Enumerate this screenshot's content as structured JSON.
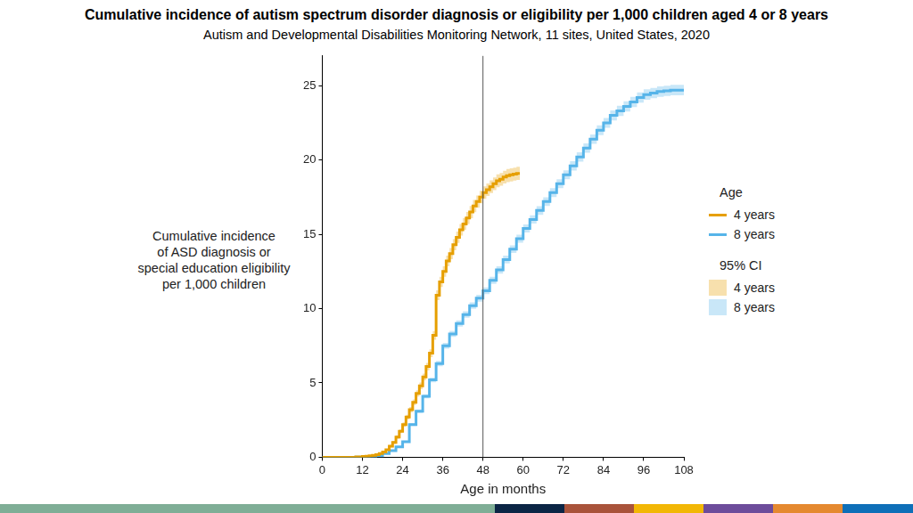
{
  "chart_data": {
    "type": "line",
    "title": "Cumulative incidence of autism spectrum disorder diagnosis or eligibility per 1,000 children aged 4 or 8 years",
    "subtitle": "Autism and Developmental Disabilities Monitoring Network, 11 sites, United States, 2020",
    "xlabel": "Age in months",
    "ylabel": "Cumulative incidence\nof ASD diagnosis or\nspecial education eligibility\nper 1,000 children",
    "xlim": [
      0,
      108
    ],
    "xticks": [
      0,
      12,
      24,
      36,
      48,
      60,
      72,
      84,
      96,
      108
    ],
    "ylim": [
      0,
      27
    ],
    "yticks": [
      0,
      5,
      10,
      15,
      20,
      25
    ],
    "grid": false,
    "legend": "right",
    "legend_title": "Age",
    "ci_legend_title": "95% CI",
    "line_style": "steps",
    "vline": 48,
    "series": [
      {
        "name": "4 years",
        "color": "#E69F00",
        "x": [
          0,
          1,
          2,
          3,
          4,
          5,
          6,
          7,
          8,
          9,
          10,
          11,
          12,
          13,
          14,
          15,
          16,
          17,
          18,
          19,
          20,
          21,
          22,
          23,
          24,
          25,
          26,
          27,
          28,
          29,
          30,
          31,
          32,
          33,
          34,
          35,
          36,
          37,
          38,
          39,
          40,
          41,
          42,
          43,
          44,
          45,
          46,
          47,
          48,
          49,
          50,
          51,
          52,
          53,
          54,
          55,
          56,
          57,
          58,
          59
        ],
        "values": [
          0,
          0,
          0,
          0,
          0,
          0,
          0,
          0,
          0,
          0,
          0.02,
          0.03,
          0.05,
          0.07,
          0.1,
          0.13,
          0.18,
          0.25,
          0.35,
          0.5,
          0.75,
          1.0,
          1.35,
          1.75,
          2.2,
          2.7,
          3.2,
          3.7,
          4.3,
          4.8,
          5.4,
          6.1,
          7.0,
          8.2,
          10.9,
          11.8,
          12.5,
          13.2,
          13.7,
          14.3,
          14.8,
          15.3,
          15.7,
          16.1,
          16.5,
          16.9,
          17.2,
          17.5,
          17.8,
          18.0,
          18.2,
          18.4,
          18.6,
          18.7,
          18.85,
          18.95,
          19.0,
          19.05,
          19.1,
          19.1
        ],
        "ci_lower": [
          0,
          0,
          0,
          0,
          0,
          0,
          0,
          0,
          0,
          0,
          0.01,
          0.01,
          0.03,
          0.04,
          0.07,
          0.09,
          0.14,
          0.2,
          0.29,
          0.43,
          0.66,
          0.9,
          1.23,
          1.62,
          2.05,
          2.54,
          3.02,
          3.51,
          4.09,
          4.58,
          5.17,
          5.85,
          6.74,
          7.91,
          10.57,
          11.46,
          12.15,
          12.84,
          13.33,
          13.92,
          14.42,
          14.91,
          15.3,
          15.7,
          16.09,
          16.49,
          16.79,
          17.08,
          17.38,
          17.58,
          17.77,
          17.97,
          18.17,
          18.27,
          18.42,
          18.51,
          18.56,
          18.61,
          18.66,
          18.66
        ],
        "ci_upper": [
          0,
          0,
          0,
          0,
          0,
          0,
          0,
          0,
          0,
          0,
          0.03,
          0.05,
          0.07,
          0.1,
          0.13,
          0.17,
          0.22,
          0.3,
          0.41,
          0.57,
          0.84,
          1.1,
          1.47,
          1.88,
          2.35,
          2.86,
          3.38,
          3.89,
          4.51,
          5.02,
          5.63,
          6.35,
          7.26,
          8.49,
          11.23,
          12.14,
          12.85,
          13.56,
          14.07,
          14.68,
          15.18,
          15.69,
          16.1,
          16.5,
          16.91,
          17.31,
          17.61,
          17.92,
          18.22,
          18.42,
          18.63,
          18.83,
          19.03,
          19.13,
          19.28,
          19.39,
          19.44,
          19.49,
          19.54,
          19.54
        ]
      },
      {
        "name": "8 years",
        "color": "#56B4E9",
        "x": [
          0,
          2,
          4,
          6,
          8,
          10,
          12,
          14,
          16,
          18,
          20,
          22,
          24,
          26,
          28,
          30,
          32,
          34,
          36,
          38,
          40,
          42,
          44,
          46,
          48,
          50,
          52,
          54,
          56,
          58,
          60,
          62,
          64,
          66,
          68,
          70,
          72,
          74,
          76,
          78,
          80,
          82,
          84,
          86,
          88,
          90,
          92,
          94,
          96,
          98,
          100,
          102,
          104,
          106,
          108
        ],
        "values": [
          0,
          0,
          0,
          0,
          0,
          0.01,
          0.02,
          0.04,
          0.1,
          0.25,
          0.45,
          0.7,
          1.05,
          2.2,
          3.1,
          4.1,
          5.2,
          6.3,
          7.5,
          8.3,
          9.0,
          9.6,
          10.2,
          10.7,
          11.2,
          11.9,
          12.6,
          13.3,
          14.0,
          14.7,
          15.4,
          16.0,
          16.6,
          17.2,
          17.8,
          18.4,
          19.0,
          19.6,
          20.2,
          20.8,
          21.4,
          22.0,
          22.5,
          23.0,
          23.3,
          23.6,
          23.9,
          24.2,
          24.4,
          24.5,
          24.6,
          24.65,
          24.7,
          24.7,
          24.7
        ],
        "ci_lower": [
          0,
          0,
          0,
          0,
          0,
          0,
          0.01,
          0.03,
          0.08,
          0.22,
          0.4,
          0.64,
          0.98,
          2.1,
          2.98,
          3.96,
          5.04,
          6.12,
          7.31,
          8.1,
          8.79,
          9.38,
          9.98,
          10.47,
          10.97,
          11.66,
          12.35,
          13.04,
          13.74,
          14.43,
          15.13,
          15.72,
          16.31,
          16.91,
          17.5,
          18.1,
          18.7,
          19.29,
          19.89,
          20.48,
          21.08,
          21.67,
          22.17,
          22.66,
          22.96,
          23.26,
          23.56,
          23.86,
          24.05,
          24.15,
          24.25,
          24.3,
          24.35,
          24.35,
          24.35
        ],
        "ci_upper": [
          0,
          0,
          0,
          0,
          0,
          0.02,
          0.03,
          0.05,
          0.12,
          0.29,
          0.5,
          0.76,
          1.12,
          2.3,
          3.22,
          4.24,
          5.36,
          6.48,
          7.69,
          8.5,
          9.21,
          9.82,
          10.42,
          10.93,
          11.43,
          12.14,
          12.85,
          13.56,
          14.26,
          14.97,
          15.67,
          16.28,
          16.89,
          17.49,
          18.1,
          18.7,
          19.3,
          19.91,
          20.51,
          21.12,
          21.72,
          22.33,
          22.83,
          23.34,
          23.64,
          23.94,
          24.24,
          24.54,
          24.75,
          24.85,
          24.95,
          25.0,
          25.05,
          25.05,
          25.05
        ]
      }
    ]
  }
}
